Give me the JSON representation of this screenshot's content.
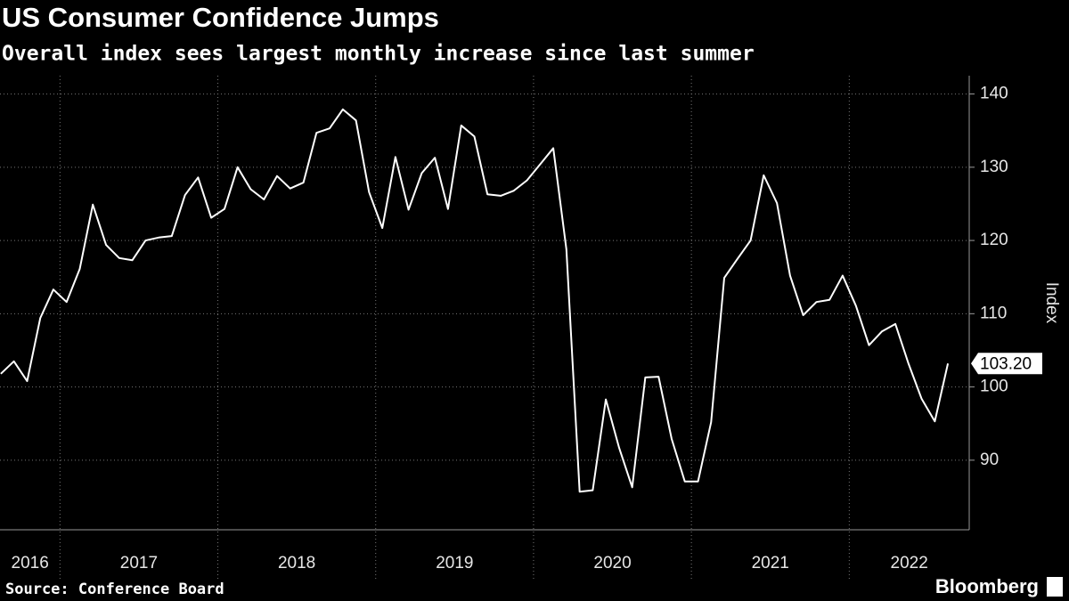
{
  "chart_data": {
    "type": "line",
    "title": "US Consumer Confidence Jumps",
    "subtitle": "Overall index sees largest monthly increase since last summer",
    "y_axis_label": "Index",
    "source": "Source: Conference Board",
    "brand": "Bloomberg",
    "year_labels": [
      "2016",
      "2017",
      "2018",
      "2019",
      "2020",
      "2021",
      "2022"
    ],
    "year_starts": [
      2016,
      2017,
      2018,
      2019,
      2020,
      2021,
      2022
    ],
    "x": [
      2016.625,
      2016.708,
      2016.792,
      2016.875,
      2016.958,
      2017.042,
      2017.125,
      2017.208,
      2017.292,
      2017.375,
      2017.458,
      2017.542,
      2017.625,
      2017.708,
      2017.792,
      2017.875,
      2017.958,
      2018.042,
      2018.125,
      2018.208,
      2018.292,
      2018.375,
      2018.458,
      2018.542,
      2018.625,
      2018.708,
      2018.792,
      2018.875,
      2018.958,
      2019.042,
      2019.125,
      2019.208,
      2019.292,
      2019.375,
      2019.458,
      2019.542,
      2019.625,
      2019.708,
      2019.792,
      2019.875,
      2019.958,
      2020.042,
      2020.125,
      2020.208,
      2020.292,
      2020.375,
      2020.458,
      2020.542,
      2020.625,
      2020.708,
      2020.792,
      2020.875,
      2020.958,
      2021.042,
      2021.125,
      2021.208,
      2021.292,
      2021.375,
      2021.458,
      2021.542,
      2021.625,
      2021.708,
      2021.792,
      2021.875,
      2021.958,
      2022.042,
      2022.125,
      2022.208,
      2022.292,
      2022.375,
      2022.458,
      2022.542,
      2022.625
    ],
    "series": [
      {
        "name": "Index",
        "color": "#ffffff",
        "values": [
          101.8,
          103.5,
          100.8,
          109.4,
          113.3,
          111.6,
          116.1,
          124.9,
          119.4,
          117.6,
          117.3,
          120.0,
          120.4,
          120.6,
          126.2,
          128.6,
          123.1,
          124.3,
          130.0,
          127.0,
          125.6,
          128.8,
          127.1,
          127.9,
          134.7,
          135.3,
          137.9,
          136.4,
          126.6,
          121.7,
          131.4,
          124.2,
          129.2,
          131.3,
          124.3,
          135.7,
          134.2,
          126.3,
          126.1,
          126.8,
          128.2,
          130.4,
          132.6,
          118.8,
          85.7,
          85.9,
          98.3,
          91.7,
          86.3,
          101.3,
          101.4,
          92.9,
          87.1,
          87.1,
          95.2,
          114.9,
          117.5,
          120.0,
          128.9,
          125.1,
          115.2,
          109.8,
          111.6,
          111.9,
          115.2,
          111.1,
          105.7,
          107.6,
          108.6,
          103.2,
          98.4,
          95.3,
          103.2
        ]
      }
    ],
    "end_label": "103.20",
    "xlim": [
      2016.62,
      2022.76
    ],
    "ylim": [
      80.5,
      142.5
    ],
    "yticks": [
      90,
      100,
      110,
      120,
      130,
      140
    ],
    "grid": true
  }
}
